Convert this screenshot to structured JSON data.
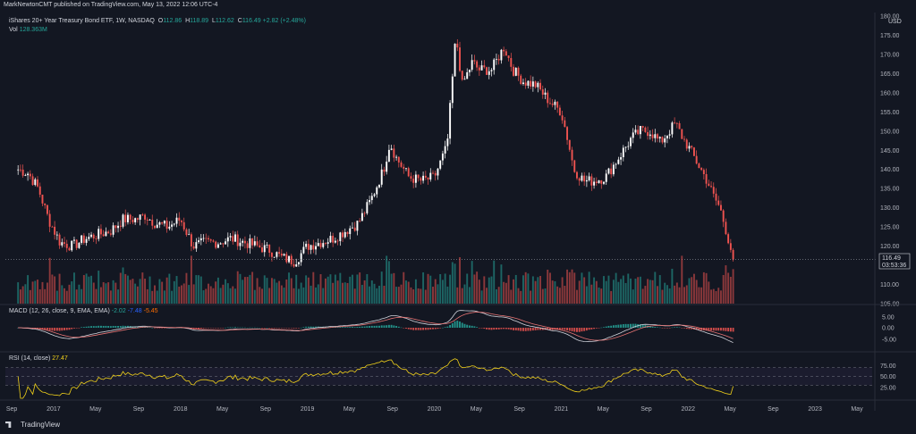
{
  "publisher": "MarkNewtonCMT published on TradingView.com, May 13, 2022 12:06 UTC-4",
  "legend": {
    "title": "iShares 20+ Year Treasury Bond ETF, 1W, NASDAQ",
    "o_label": "O",
    "o": "112.86",
    "h_label": "H",
    "h": "118.89",
    "l_label": "L",
    "l": "112.62",
    "c_label": "C",
    "c": "116.49",
    "change": "+2.82 (+2.48%)",
    "vol_label": "Vol",
    "vol": "128.363M"
  },
  "macd_legend": {
    "label": "MACD (12, 26, close, 9, EMA, EMA)",
    "v1": "-2.02",
    "v2": "-7.48",
    "v3": "-5.45"
  },
  "rsi_legend": {
    "label": "RSI (14, close)",
    "value": "27.47"
  },
  "price_box": {
    "price": "116.49",
    "countdown": "03:53:36"
  },
  "currency": "USD",
  "logo": "TradingView",
  "colors": {
    "up": "#ffffff",
    "down": "#ef5350",
    "vol_up": "#26a69a",
    "vol_down": "#ef5350",
    "macd_line": "#2962ff",
    "rsi": "#f2d21a",
    "bg": "#131722"
  },
  "chart_data": [
    {
      "type": "candlestick",
      "title": "iShares 20+ Year Treasury Bond ETF, 1W, NASDAQ",
      "ylim": [
        105,
        180
      ],
      "y_ticks": [
        "180.00",
        "175.00",
        "170.00",
        "165.00",
        "160.00",
        "155.00",
        "150.00",
        "145.00",
        "140.00",
        "135.00",
        "130.00",
        "125.00",
        "120.00",
        "115.00",
        "110.00",
        "105.00"
      ],
      "x_labels": [
        "Sep",
        "2017",
        "May",
        "Sep",
        "2018",
        "May",
        "Sep",
        "2019",
        "May",
        "Sep",
        "2020",
        "May",
        "Sep",
        "2021",
        "May",
        "Sep",
        "2022",
        "May",
        "Sep",
        "2023",
        "May"
      ],
      "last_price": 116.49,
      "close_series": [
        [
          2016.72,
          140
        ],
        [
          2016.8,
          139
        ],
        [
          2016.88,
          135
        ],
        [
          2016.96,
          127
        ],
        [
          2017.05,
          121
        ],
        [
          2017.15,
          120
        ],
        [
          2017.25,
          122
        ],
        [
          2017.35,
          123
        ],
        [
          2017.45,
          124
        ],
        [
          2017.55,
          127
        ],
        [
          2017.65,
          127
        ],
        [
          2017.72,
          128
        ],
        [
          2017.8,
          126
        ],
        [
          2017.9,
          125
        ],
        [
          2018.0,
          127
        ],
        [
          2018.1,
          120
        ],
        [
          2018.2,
          121
        ],
        [
          2018.3,
          121
        ],
        [
          2018.4,
          122
        ],
        [
          2018.5,
          121
        ],
        [
          2018.6,
          120
        ],
        [
          2018.7,
          119
        ],
        [
          2018.8,
          117
        ],
        [
          2018.9,
          116
        ],
        [
          2019.0,
          120
        ],
        [
          2019.1,
          121
        ],
        [
          2019.2,
          122
        ],
        [
          2019.3,
          124
        ],
        [
          2019.4,
          126
        ],
        [
          2019.5,
          132
        ],
        [
          2019.6,
          140
        ],
        [
          2019.65,
          147
        ],
        [
          2019.7,
          143
        ],
        [
          2019.8,
          138
        ],
        [
          2019.9,
          137
        ],
        [
          2020.0,
          138
        ],
        [
          2020.1,
          146
        ],
        [
          2020.17,
          175
        ],
        [
          2020.22,
          162
        ],
        [
          2020.3,
          168
        ],
        [
          2020.35,
          166
        ],
        [
          2020.45,
          166
        ],
        [
          2020.55,
          172
        ],
        [
          2020.62,
          166
        ],
        [
          2020.7,
          163
        ],
        [
          2020.8,
          162
        ],
        [
          2020.9,
          158
        ],
        [
          2021.0,
          155
        ],
        [
          2021.05,
          148
        ],
        [
          2021.1,
          140
        ],
        [
          2021.18,
          137
        ],
        [
          2021.25,
          137
        ],
        [
          2021.35,
          138
        ],
        [
          2021.45,
          143
        ],
        [
          2021.55,
          148
        ],
        [
          2021.62,
          150
        ],
        [
          2021.7,
          150
        ],
        [
          2021.78,
          147
        ],
        [
          2021.85,
          150
        ],
        [
          2021.9,
          152
        ],
        [
          2021.96,
          148
        ],
        [
          2022.0,
          146
        ],
        [
          2022.05,
          143
        ],
        [
          2022.1,
          140
        ],
        [
          2022.15,
          137
        ],
        [
          2022.2,
          133
        ],
        [
          2022.25,
          130
        ],
        [
          2022.3,
          124
        ],
        [
          2022.33,
          120
        ],
        [
          2022.36,
          116.49
        ]
      ]
    },
    {
      "type": "bar",
      "title": "Volume",
      "label": "Vol",
      "last_value": "128.363M"
    },
    {
      "type": "line",
      "title": "MACD (12, 26, close, 9, EMA, EMA)",
      "y_ticks": [
        "5.00",
        "0.00",
        "-5.00"
      ],
      "values": {
        "histogram": -2.02,
        "macd": -7.48,
        "signal": -5.45
      }
    },
    {
      "type": "line",
      "title": "RSI (14, close)",
      "y_ticks": [
        "75.00",
        "50.00",
        "25.00"
      ],
      "bands": [
        70,
        30
      ],
      "last_value": 27.47
    }
  ]
}
